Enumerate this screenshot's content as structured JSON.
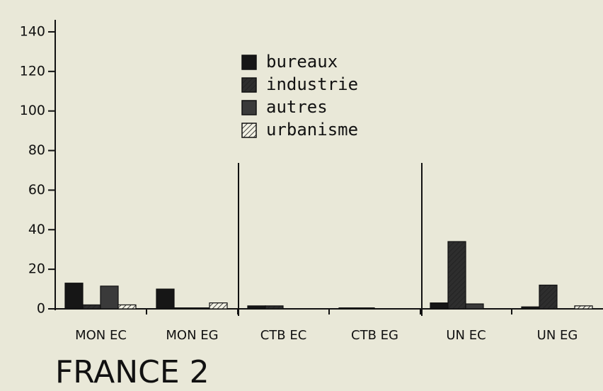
{
  "chart_data": {
    "type": "bar",
    "title": "FRANCE 2",
    "categories": [
      "MON EC",
      "MON EG",
      "CTB EC",
      "CTB EG",
      "UN EC",
      "UN EG"
    ],
    "series": [
      {
        "name": "bureaux",
        "color": "#161616",
        "values": [
          13,
          10,
          1.5,
          0.5,
          3,
          1
        ]
      },
      {
        "name": "industrie",
        "color": "#2e2e2e",
        "values": [
          2,
          0.5,
          1.5,
          0.5,
          34,
          12
        ]
      },
      {
        "name": "autres",
        "color": "#3a3a3a",
        "values": [
          11.5,
          0.5,
          0,
          0,
          2.5,
          0
        ]
      },
      {
        "name": "urbanisme",
        "color": "#f4f3e6",
        "values": [
          2,
          3,
          0,
          0,
          0,
          1.5
        ]
      }
    ],
    "ylim": [
      0,
      145
    ],
    "yticks": [
      0,
      20,
      40,
      60,
      80,
      100,
      120,
      140
    ],
    "grid": false
  }
}
